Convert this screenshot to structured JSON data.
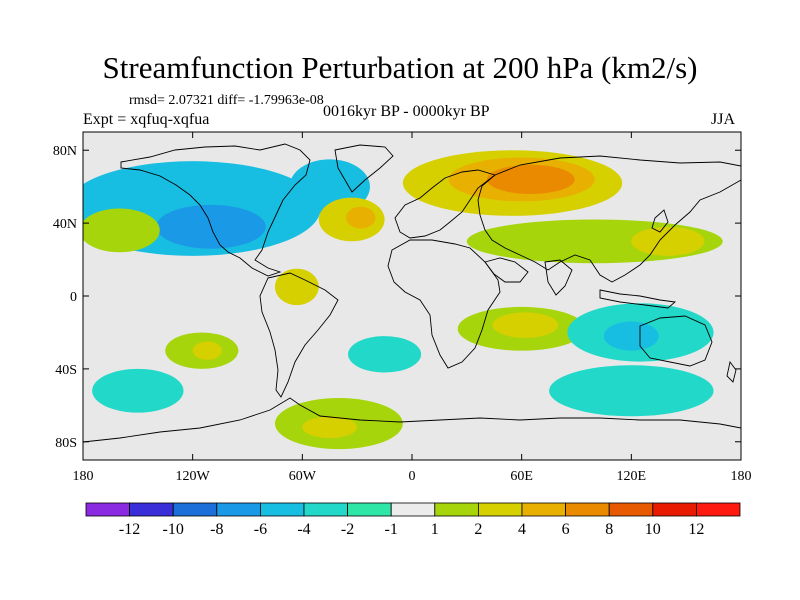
{
  "title": "Streamfunction Perturbation at 200 hPa (km2/s)",
  "stats": "rmsd= 2.07321 diff= -1.79963e-08",
  "experiment": "Expt = xqfuq-xqfua",
  "period": "0016kyr BP - 0000kyr BP",
  "season": "JJA",
  "colors": {
    "ocean_background": "#e8e8e8",
    "neg6": "#8a2be2",
    "neg5": "#3a2ed8",
    "neg4": "#1c6fd8",
    "neg3": "#1a9ae6",
    "neg2": "#18bde2",
    "neg1": "#22d8c8",
    "neutral": "#ececec",
    "pos1": "#a6d50b",
    "pos2": "#d6d000",
    "pos3": "#e8b000",
    "pos4": "#ea8a00",
    "pos5": "#e85a00",
    "pos6": "#e81a00"
  },
  "map": {
    "projection": "cylindrical equidistant",
    "lon_range": [
      -180,
      180
    ],
    "lat_range": [
      -90,
      90
    ],
    "lat_ticks": [
      {
        "value": 80,
        "label": "80N"
      },
      {
        "value": 40,
        "label": "40N"
      },
      {
        "value": 0,
        "label": "0"
      },
      {
        "value": -40,
        "label": "40S"
      },
      {
        "value": -80,
        "label": "80S"
      }
    ],
    "lon_ticks": [
      {
        "value": -180,
        "label": "180"
      },
      {
        "value": -120,
        "label": "120W"
      },
      {
        "value": -60,
        "label": "60W"
      },
      {
        "value": 0,
        "label": "0"
      },
      {
        "value": 60,
        "label": "60E"
      },
      {
        "value": 120,
        "label": "120E"
      },
      {
        "value": 180,
        "label": "180"
      }
    ]
  },
  "colorbar": {
    "levels": [
      "-12",
      "-10",
      "-8",
      "-6",
      "-4",
      "-2",
      "-1",
      "1",
      "2",
      "4",
      "6",
      "8",
      "10",
      "12"
    ],
    "colors": [
      "#8a2be2",
      "#3a2ed8",
      "#1c6fd8",
      "#1a9ae6",
      "#18bde2",
      "#22d8c8",
      "#2ee6a6",
      "#ececec",
      "#a6d50b",
      "#d6d000",
      "#e8b000",
      "#ea8a00",
      "#e85a00",
      "#e81a00",
      "#ff1a10"
    ]
  },
  "field": {
    "description": "contour regions in data units (lon, lat) and value class",
    "regions": [
      {
        "name": "n-america-broad",
        "cls": 4,
        "lon": -120,
        "lat": 48,
        "rlon": 70,
        "rlat": 26
      },
      {
        "name": "n-america-core",
        "cls": 3,
        "lon": -110,
        "lat": 38,
        "rlon": 30,
        "rlat": 12
      },
      {
        "name": "n-atlantic",
        "cls": 4,
        "lon": -45,
        "lat": 60,
        "rlon": 22,
        "rlat": 15
      },
      {
        "name": "west-pacific-north",
        "cls": 8,
        "lon": -160,
        "lat": 36,
        "rlon": 22,
        "rlat": 12
      },
      {
        "name": "mid-atlantic-pos",
        "cls": 9,
        "lon": -33,
        "lat": 42,
        "rlon": 18,
        "rlat": 12
      },
      {
        "name": "mid-atlantic-pos-core",
        "cls": 10,
        "lon": -28,
        "lat": 43,
        "rlon": 8,
        "rlat": 6
      },
      {
        "name": "eurasia-pos",
        "cls": 9,
        "lon": 55,
        "lat": 62,
        "rlon": 60,
        "rlat": 18
      },
      {
        "name": "eurasia-pos-mid",
        "cls": 10,
        "lon": 60,
        "lat": 64,
        "rlon": 40,
        "rlat": 12
      },
      {
        "name": "eurasia-pos-core",
        "cls": 11,
        "lon": 65,
        "lat": 64,
        "rlon": 24,
        "rlat": 8
      },
      {
        "name": "asia-band",
        "cls": 8,
        "lon": 100,
        "lat": 30,
        "rlon": 70,
        "rlat": 12
      },
      {
        "name": "asia-band-yellow",
        "cls": 9,
        "lon": 140,
        "lat": 30,
        "rlon": 20,
        "rlat": 8
      },
      {
        "name": "south-america",
        "cls": 9,
        "lon": -63,
        "lat": 5,
        "rlon": 12,
        "rlat": 10
      },
      {
        "name": "south-atlantic-neg",
        "cls": 5,
        "lon": -15,
        "lat": -32,
        "rlon": 20,
        "rlat": 10
      },
      {
        "name": "indian-ocean-pos",
        "cls": 8,
        "lon": 60,
        "lat": -18,
        "rlon": 35,
        "rlat": 12
      },
      {
        "name": "indian-ocean-core",
        "cls": 9,
        "lon": 62,
        "lat": -16,
        "rlon": 18,
        "rlat": 7
      },
      {
        "name": "australia-neg",
        "cls": 5,
        "lon": 125,
        "lat": -20,
        "rlon": 40,
        "rlat": 16
      },
      {
        "name": "australia-neg-core",
        "cls": 4,
        "lon": 120,
        "lat": -22,
        "rlon": 15,
        "rlat": 8
      },
      {
        "name": "south-pacific-pos",
        "cls": 8,
        "lon": -115,
        "lat": -30,
        "rlon": 20,
        "rlat": 10
      },
      {
        "name": "south-pacific-pos-core",
        "cls": 9,
        "lon": -112,
        "lat": -30,
        "rlon": 8,
        "rlat": 5
      },
      {
        "name": "south-pacific-neg",
        "cls": 5,
        "lon": -150,
        "lat": -52,
        "rlon": 25,
        "rlat": 12
      },
      {
        "name": "antarctic-neg",
        "cls": 5,
        "lon": 120,
        "lat": -52,
        "rlon": 45,
        "rlat": 14
      },
      {
        "name": "antarctic-pos",
        "cls": 8,
        "lon": -40,
        "lat": -70,
        "rlon": 35,
        "rlat": 14
      },
      {
        "name": "antarctic-pos-core",
        "cls": 9,
        "lon": -45,
        "lat": -72,
        "rlon": 15,
        "rlat": 6
      }
    ]
  }
}
